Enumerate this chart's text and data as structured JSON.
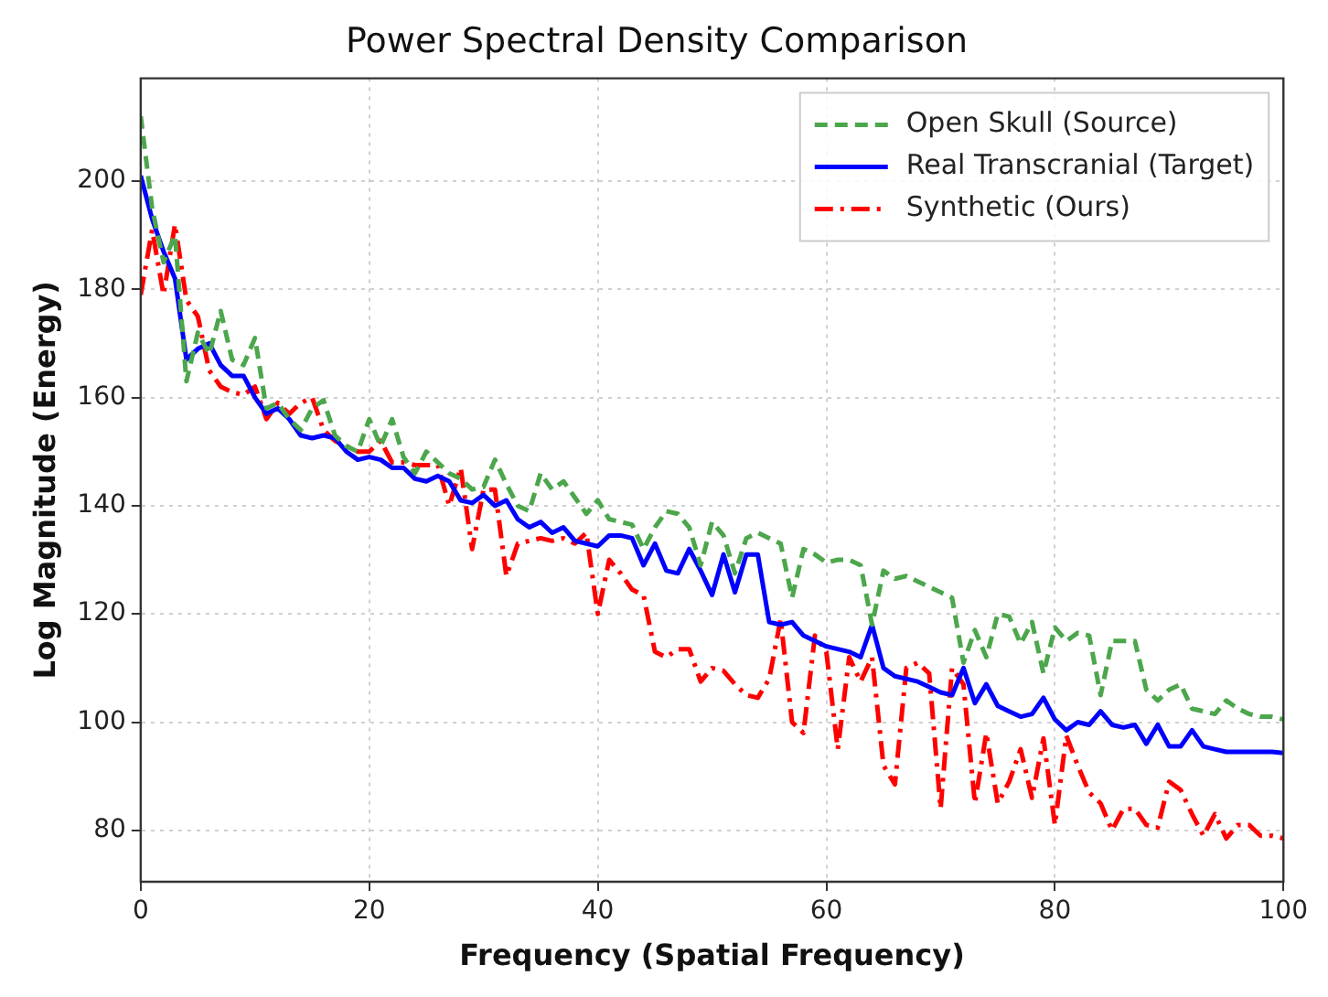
{
  "chart_data": {
    "type": "line",
    "title": "Power Spectral Density Comparison",
    "xlabel": "Frequency (Spatial Frequency)",
    "ylabel": "Log Magnitude (Energy)",
    "x": [
      0,
      1,
      2,
      3,
      4,
      5,
      6,
      7,
      8,
      9,
      10,
      11,
      12,
      13,
      14,
      15,
      16,
      17,
      18,
      19,
      20,
      21,
      22,
      23,
      24,
      25,
      26,
      27,
      28,
      29,
      30,
      31,
      32,
      33,
      34,
      35,
      36,
      37,
      38,
      39,
      40,
      41,
      42,
      43,
      44,
      45,
      46,
      47,
      48,
      49,
      50,
      51,
      52,
      53,
      54,
      55,
      56,
      57,
      58,
      59,
      60,
      61,
      62,
      63,
      64,
      65,
      66,
      67,
      68,
      69,
      70,
      71,
      72,
      73,
      74,
      75,
      76,
      77,
      78,
      79,
      80,
      81,
      82,
      83,
      84,
      85,
      86,
      87,
      88,
      89,
      90,
      91,
      92,
      93,
      94,
      95,
      96,
      97,
      98,
      99,
      100
    ],
    "xlim": [
      0,
      100
    ],
    "xticks": [
      0,
      20,
      40,
      60,
      80,
      100
    ],
    "ylim": [
      70.5,
      219
    ],
    "yticks": [
      80,
      100,
      120,
      140,
      160,
      180,
      200
    ],
    "grid": true,
    "legend": "top right",
    "marker": "none",
    "series": [
      {
        "name": "Open Skull (Source)",
        "color": "#4ca64c",
        "line_style": "dashed",
        "values": [
          212,
          195,
          185,
          190,
          163,
          172,
          168,
          176,
          167,
          166,
          171,
          158,
          159,
          156,
          154,
          158,
          159.5,
          153,
          151,
          150,
          156,
          151,
          156,
          149,
          146,
          150,
          148,
          146,
          145,
          143,
          143.5,
          148.5,
          144,
          140,
          139,
          146,
          143,
          144.5,
          141.5,
          138.5,
          141,
          137.5,
          137,
          136.5,
          132,
          136,
          139,
          138.5,
          136,
          129,
          137,
          134.5,
          127.5,
          134,
          135,
          134,
          133,
          123,
          132,
          131,
          129.5,
          130,
          130,
          129,
          118,
          128,
          126.5,
          127,
          126,
          125,
          124,
          123,
          111,
          117,
          112,
          120,
          119.5,
          114.5,
          118.5,
          109,
          117.5,
          115,
          116.5,
          116,
          105,
          115,
          115,
          115,
          106,
          104,
          106,
          107,
          102.5,
          102,
          101.5,
          104,
          102.5,
          101.5,
          101,
          101,
          100.5
        ]
      },
      {
        "name": "Real Transcranial (Target)",
        "color": "#0000ff",
        "line_style": "solid",
        "values": [
          201,
          193,
          187,
          182,
          167,
          169,
          170,
          166,
          164,
          164,
          160,
          157,
          158,
          156,
          153,
          152.5,
          153,
          152.5,
          150,
          148.5,
          149,
          148.5,
          147,
          147,
          145,
          144.5,
          145.5,
          144.5,
          141,
          140.5,
          142,
          140,
          141,
          137.5,
          136,
          137,
          135,
          136,
          133.5,
          133,
          132.5,
          134.5,
          134.5,
          134,
          129,
          133,
          128,
          127.5,
          132,
          128,
          123.5,
          131,
          124,
          131,
          131,
          118.5,
          118,
          118.5,
          116,
          115,
          114,
          113.5,
          113,
          112,
          118,
          110,
          108.5,
          108,
          107.5,
          106.5,
          105.5,
          105,
          110,
          103.5,
          107,
          103,
          102,
          101,
          101.5,
          104.5,
          100.5,
          98.5,
          100,
          99.5,
          102,
          99.5,
          99,
          99.5,
          96,
          99.5,
          95.5,
          95.5,
          98.5,
          95.5,
          95,
          94.5,
          94.5,
          94.5,
          94.5,
          94.5,
          94.3
        ]
      },
      {
        "name": "Synthetic (Ours)",
        "color": "#ff0000",
        "line_style": "dashdot",
        "values": [
          179,
          191,
          179,
          192,
          178,
          175,
          165,
          162,
          161,
          160.5,
          162,
          156,
          159,
          157,
          159,
          160,
          154,
          152,
          151,
          150,
          150,
          152,
          148,
          148,
          147.5,
          147.5,
          147.5,
          140,
          147,
          132,
          143,
          143,
          127,
          133,
          133.5,
          134,
          133.5,
          134,
          133,
          135,
          120,
          130,
          127.5,
          124.5,
          123.5,
          113,
          112,
          113.5,
          113.5,
          107.5,
          110,
          109.5,
          107,
          105,
          104.5,
          108,
          119,
          100,
          98,
          116,
          113,
          95,
          112,
          107.5,
          112,
          92,
          88.5,
          110,
          111,
          109,
          84,
          110,
          107,
          85,
          98,
          85,
          89,
          95,
          86,
          97,
          81,
          97.5,
          92,
          87,
          85,
          80,
          84,
          84,
          81,
          80.5,
          89,
          87.5,
          83,
          79,
          83,
          78.5,
          81,
          81,
          79,
          79,
          78.5
        ]
      }
    ]
  }
}
